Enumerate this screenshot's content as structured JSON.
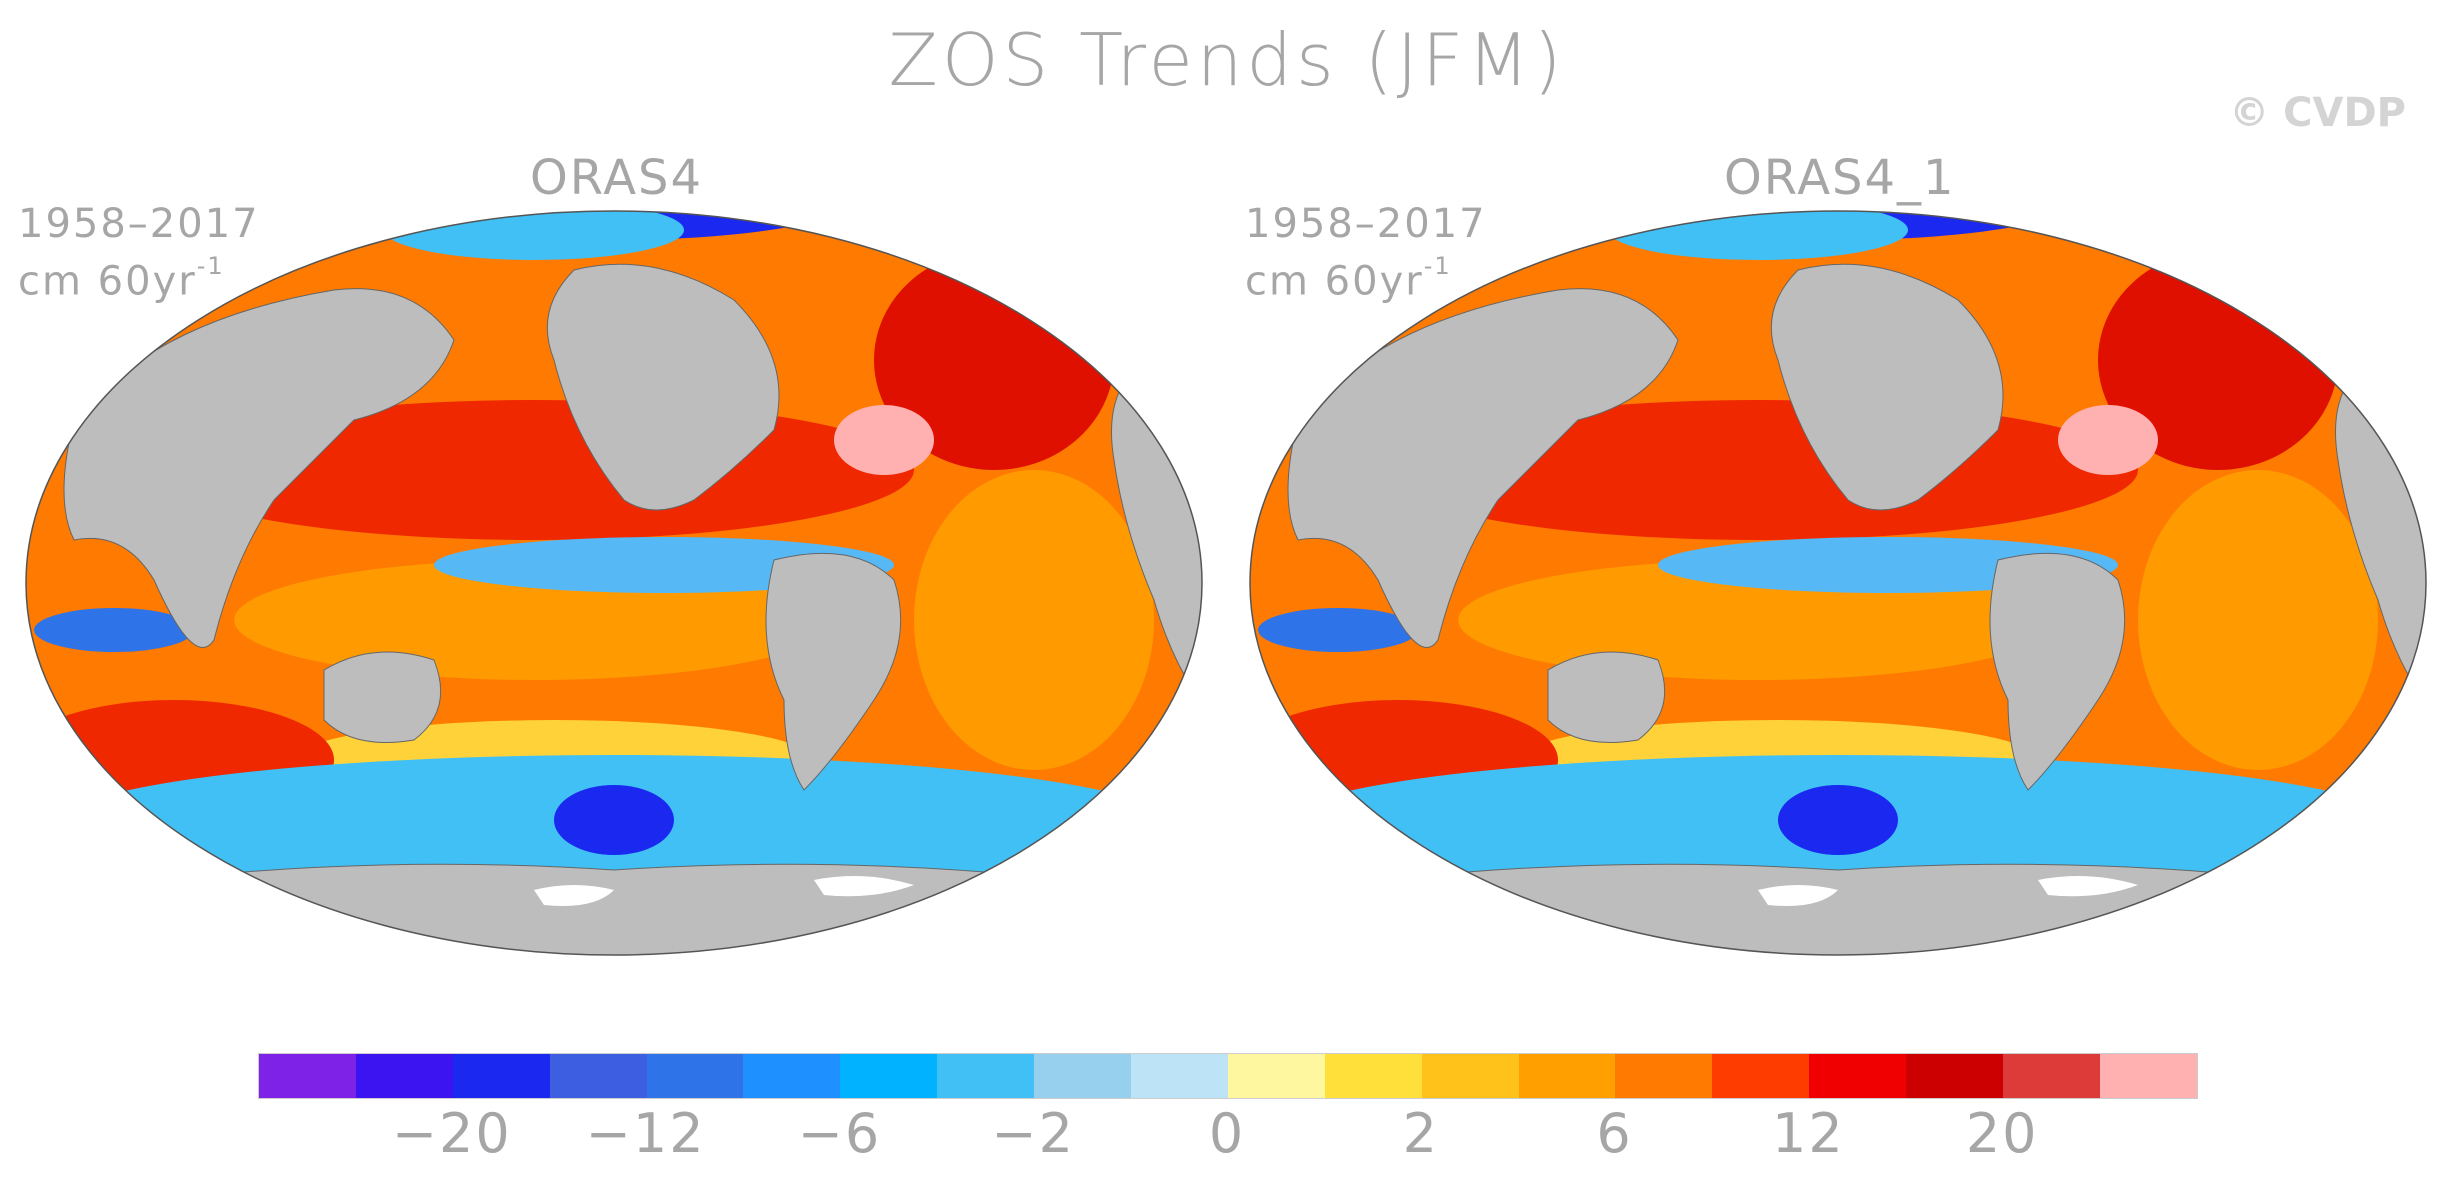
{
  "title": "ZOS Trends (JFM)",
  "watermark": "© CVDP",
  "panels": [
    {
      "name": "ORAS4",
      "period": "1958–2017",
      "units_base": "cm 60yr",
      "units_exp": "-1"
    },
    {
      "name": "ORAS4_1",
      "period": "1958–2017",
      "units_base": "cm 60yr",
      "units_exp": "-1"
    }
  ],
  "colorbar": {
    "colors": [
      "#7f22e8",
      "#3c14f2",
      "#1a28f0",
      "#3d5ee0",
      "#2e73e8",
      "#1e90ff",
      "#00b2ff",
      "#40c0f5",
      "#96d0ee",
      "#bde3f6",
      "#fff6a0",
      "#ffe03a",
      "#ffc21a",
      "#ffa000",
      "#ff7a00",
      "#ff3c00",
      "#f00000",
      "#cc0000",
      "#dd3a3a",
      "#ffb0b0"
    ],
    "tick_labels": [
      "-20",
      "-12",
      "-6",
      "-2",
      "0",
      "2",
      "6",
      "12",
      "20"
    ]
  },
  "map_colors": {
    "land": "#bdbdbd",
    "ice": "#ffffff",
    "ocean_base": "#ff7a00"
  }
}
